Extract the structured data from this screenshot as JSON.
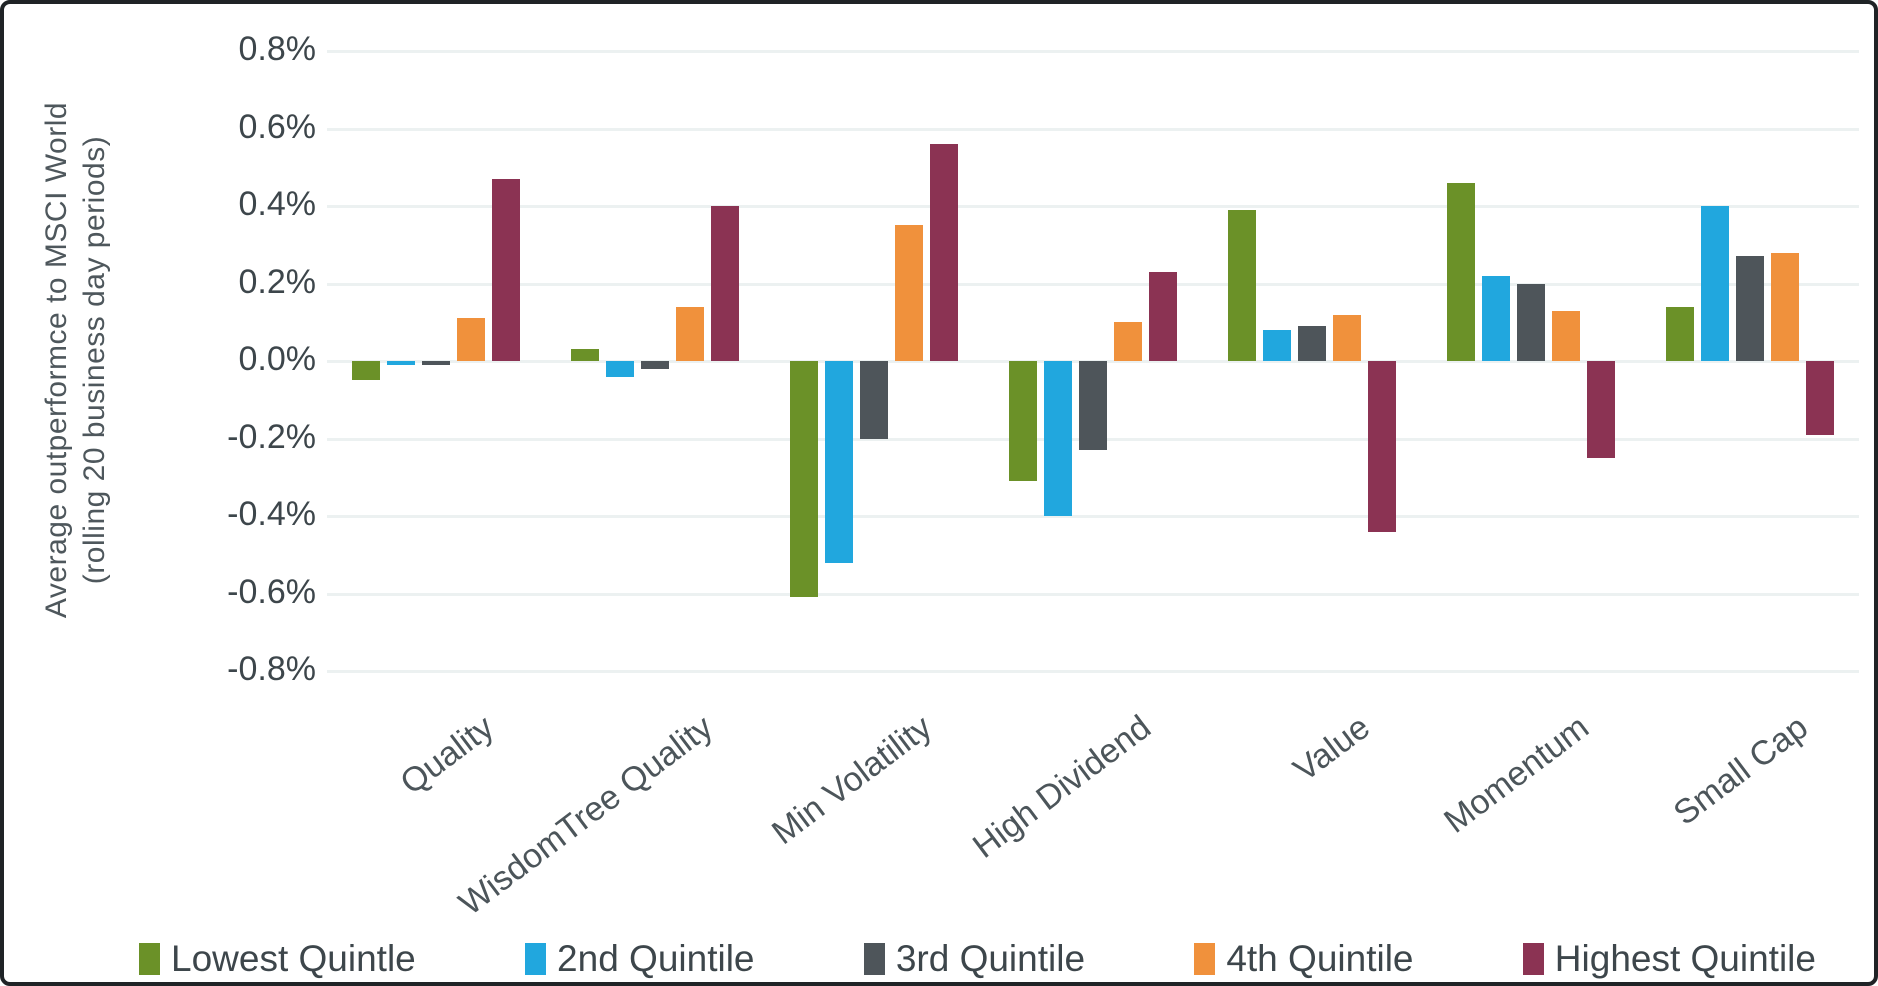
{
  "chart_data": {
    "type": "bar",
    "title": "",
    "ylabel_line1": "Average  outperformce to MSCI World",
    "ylabel_line2": "(rolling 20 business day periods)",
    "xlabel": "",
    "categories": [
      "Quality",
      "WisdomTree Quality",
      "Min Volatility",
      "High Dividend",
      "Value",
      "Momentum",
      "Small Cap"
    ],
    "series": [
      {
        "name": "Lowest Quintle",
        "color": "#6b9128",
        "values": [
          -0.05,
          0.03,
          -0.61,
          -0.31,
          0.39,
          0.46,
          0.14
        ]
      },
      {
        "name": "2nd Quintile",
        "color": "#21a7de",
        "values": [
          -0.01,
          -0.04,
          -0.52,
          -0.4,
          0.08,
          0.22,
          0.4
        ]
      },
      {
        "name": "3rd Quintile",
        "color": "#4e555a",
        "values": [
          -0.01,
          -0.02,
          -0.2,
          -0.23,
          0.09,
          0.2,
          0.27
        ]
      },
      {
        "name": "4th Quintile",
        "color": "#f0913c",
        "values": [
          0.11,
          0.14,
          0.35,
          0.1,
          0.12,
          0.13,
          0.28
        ]
      },
      {
        "name": "Highest Quintile",
        "color": "#8b3353",
        "values": [
          0.47,
          0.4,
          0.56,
          0.23,
          -0.44,
          -0.25,
          -0.19
        ]
      }
    ],
    "y_axis": {
      "unit": "%",
      "ticks": [
        {
          "v": 0.8,
          "label": "0.8%"
        },
        {
          "v": 0.6,
          "label": "0.6%"
        },
        {
          "v": 0.4,
          "label": "0.4%"
        },
        {
          "v": 0.2,
          "label": "0.2%"
        },
        {
          "v": 0.0,
          "label": "0.0%"
        },
        {
          "v": -0.2,
          "label": "-0.2%"
        },
        {
          "v": -0.4,
          "label": "-0.4%"
        },
        {
          "v": -0.6,
          "label": "-0.6%"
        },
        {
          "v": -0.8,
          "label": "-0.8%"
        }
      ],
      "ylim": [
        -0.8,
        0.8
      ]
    },
    "grid": true,
    "legend_position": "bottom"
  },
  "colors": {
    "gridline": "#ecf1f1",
    "tick_text": "#3d464b",
    "axis_title_text": "#4e575c",
    "frame_border": "#1f2326",
    "background": "#ffffff"
  }
}
